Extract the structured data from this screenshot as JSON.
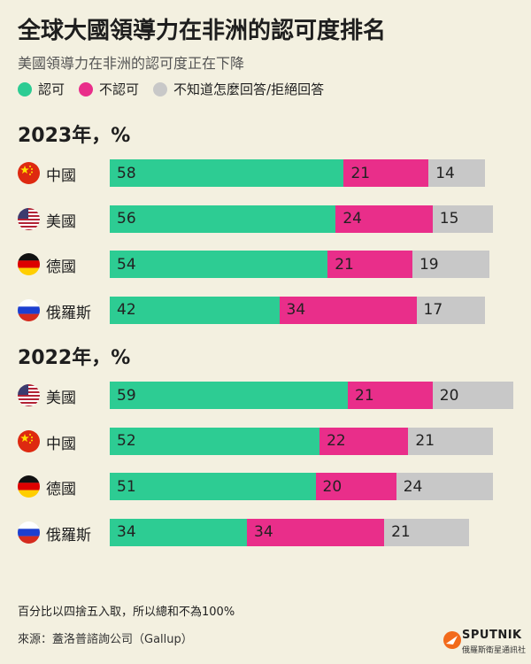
{
  "title": "全球大國領導力在非洲的認可度排名",
  "subtitle": "美國領導力在非洲的認可度正在下降",
  "legend": {
    "approve": "認可",
    "disapprove": "不認可",
    "unknown": "不知道怎麼回答/拒絕回答"
  },
  "colors": {
    "approve": "#2dcc93",
    "disapprove": "#e92e8a",
    "unknown": "#c8c8c8"
  },
  "chart_data": {
    "type": "bar",
    "orientation": "horizontal",
    "stacked": true,
    "series_names": [
      "認可",
      "不認可",
      "不知道怎麼回答/拒絕回答"
    ],
    "groups": [
      {
        "title": "2023年，%",
        "rows": [
          {
            "country": "中國",
            "flag": "china-flag-icon",
            "values": [
              58,
              21,
              14
            ]
          },
          {
            "country": "美國",
            "flag": "usa-flag-icon",
            "values": [
              56,
              24,
              15
            ]
          },
          {
            "country": "德國",
            "flag": "germany-flag-icon",
            "values": [
              54,
              21,
              19
            ]
          },
          {
            "country": "俄羅斯",
            "flag": "russia-flag-icon",
            "values": [
              42,
              34,
              17
            ]
          }
        ]
      },
      {
        "title": "2022年，%",
        "rows": [
          {
            "country": "美國",
            "flag": "usa-flag-icon",
            "values": [
              59,
              21,
              20
            ]
          },
          {
            "country": "中國",
            "flag": "china-flag-icon",
            "values": [
              52,
              22,
              21
            ]
          },
          {
            "country": "德國",
            "flag": "germany-flag-icon",
            "values": [
              51,
              20,
              24
            ]
          },
          {
            "country": "俄羅斯",
            "flag": "russia-flag-icon",
            "values": [
              34,
              34,
              21
            ]
          }
        ]
      }
    ]
  },
  "note": "百分比以四捨五入取，所以總和不為100%",
  "source": "來源：蓋洛普諮詢公司（Gallup）",
  "logo": {
    "brand": "SPUTNIK",
    "sub": "俄羅斯衛星通訊社",
    "icon": "sputnik-logo-icon"
  }
}
